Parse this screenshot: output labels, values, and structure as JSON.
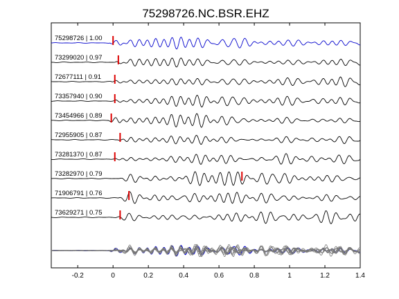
{
  "chart_data": {
    "type": "line",
    "title": "75298726.NC.BSR.EHZ",
    "xlabel": "",
    "ylabel": "",
    "xlim": [
      -0.35,
      1.4
    ],
    "xticks": [
      -0.2,
      0,
      0.2,
      0.4,
      0.6,
      0.8,
      1,
      1.2,
      1.4
    ],
    "xtick_labels": [
      "-0.2",
      "0",
      "0.2",
      "0.4",
      "0.6",
      "0.8",
      "1",
      "1.2",
      "1.4"
    ],
    "grid": false,
    "legend": "none",
    "colors": {
      "reference": "#0000cc",
      "trace": "#000000",
      "pick": "#dd0000",
      "stack": "#777777"
    },
    "traces": [
      {
        "label": "75298726 | 1.00",
        "id": "75298726",
        "cc": 1.0,
        "pick": 0.0,
        "reference": true
      },
      {
        "label": "73299020 | 0.97",
        "id": "73299020",
        "cc": 0.97,
        "pick": 0.03
      },
      {
        "label": "72677111 | 0.91",
        "id": "72677111",
        "cc": 0.91,
        "pick": 0.01
      },
      {
        "label": "73357940 | 0.90",
        "id": "73357940",
        "cc": 0.9,
        "pick": 0.01
      },
      {
        "label": "73454966 | 0.89",
        "id": "73454966",
        "cc": 0.89,
        "pick": -0.01
      },
      {
        "label": "72955905 | 0.87",
        "id": "72955905",
        "cc": 0.87,
        "pick": 0.04
      },
      {
        "label": "73281370 | 0.87",
        "id": "73281370",
        "cc": 0.87,
        "pick": 0.01
      },
      {
        "label": "73282970 | 0.79",
        "id": "73282970",
        "cc": 0.79,
        "pick": 0.73
      },
      {
        "label": "71906791 | 0.76",
        "id": "71906791",
        "cc": 0.76,
        "pick": 0.09
      },
      {
        "label": "73629271 | 0.75",
        "id": "73629271",
        "cc": 0.75,
        "pick": 0.04
      }
    ]
  }
}
